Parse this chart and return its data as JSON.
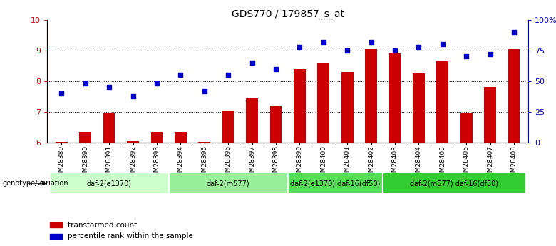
{
  "title": "GDS770 / 179857_s_at",
  "samples": [
    "GSM28389",
    "GSM28390",
    "GSM28391",
    "GSM28392",
    "GSM28393",
    "GSM28394",
    "GSM28395",
    "GSM28396",
    "GSM28397",
    "GSM28398",
    "GSM28399",
    "GSM28400",
    "GSM28401",
    "GSM28402",
    "GSM28403",
    "GSM28404",
    "GSM28405",
    "GSM28406",
    "GSM28407",
    "GSM28408"
  ],
  "transformed_count": [
    6.02,
    6.35,
    6.95,
    6.05,
    6.35,
    6.35,
    6.02,
    7.05,
    7.45,
    7.2,
    8.4,
    8.6,
    8.3,
    9.05,
    8.9,
    8.25,
    8.65,
    6.95,
    7.8,
    9.05
  ],
  "percentile_rank": [
    40,
    48,
    45,
    38,
    48,
    55,
    42,
    55,
    65,
    60,
    78,
    82,
    75,
    82,
    75,
    78,
    80,
    70,
    72,
    90
  ],
  "ylim_left": [
    6,
    10
  ],
  "ylim_right": [
    0,
    100
  ],
  "yticks_left": [
    6,
    7,
    8,
    9,
    10
  ],
  "yticks_right": [
    0,
    25,
    50,
    75,
    100
  ],
  "ytick_right_labels": [
    "0",
    "25",
    "50",
    "75",
    "100%"
  ],
  "bar_color": "#cc0000",
  "dot_color": "#0000cc",
  "groups": [
    {
      "label": "daf-2(e1370)",
      "start": 0,
      "end": 4,
      "color": "#ccffcc"
    },
    {
      "label": "daf-2(m577)",
      "start": 5,
      "end": 9,
      "color": "#99ee99"
    },
    {
      "label": "daf-2(e1370) daf-16(df50)",
      "start": 10,
      "end": 13,
      "color": "#55dd55"
    },
    {
      "label": "daf-2(m577) daf-16(df50)",
      "start": 14,
      "end": 19,
      "color": "#33cc33"
    }
  ],
  "genotype_label": "genotype/variation",
  "legend_items": [
    {
      "label": "transformed count",
      "color": "#cc0000"
    },
    {
      "label": "percentile rank within the sample",
      "color": "#0000cc"
    }
  ]
}
